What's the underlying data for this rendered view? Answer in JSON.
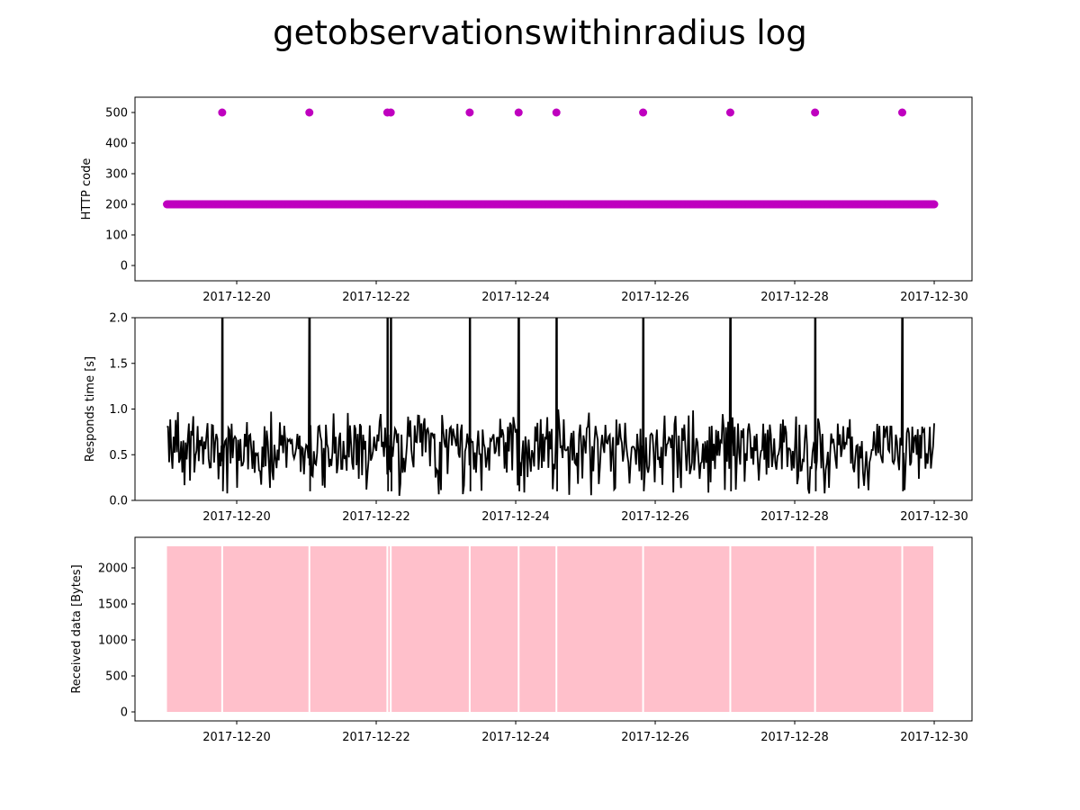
{
  "figure": {
    "title": "getobservationswithinradius log"
  },
  "chart_data": [
    {
      "type": "scatter",
      "name": "http-code-panel",
      "ylabel": "HTTP code",
      "xlim": [
        "2017-12-18T13:00",
        "2017-12-30T13:00"
      ],
      "ylim": [
        -50,
        550
      ],
      "yticks": [
        0,
        100,
        200,
        300,
        400,
        500
      ],
      "xticks": [
        "2017-12-20",
        "2017-12-22",
        "2017-12-24",
        "2017-12-26",
        "2017-12-28",
        "2017-12-30"
      ],
      "color": "#bf00bf",
      "baseline": {
        "value": 200,
        "start": "2017-12-19T00:00",
        "end": "2017-12-30T00:00",
        "step_hours": 0.25
      },
      "errors": {
        "value": 500,
        "times": [
          "2017-12-19T19:00",
          "2017-12-21T01:00",
          "2017-12-22T03:50",
          "2017-12-22T05:00",
          "2017-12-23T08:10",
          "2017-12-24T01:00",
          "2017-12-24T14:00",
          "2017-12-25T19:50",
          "2017-12-27T01:50",
          "2017-12-28T07:00",
          "2017-12-29T13:00"
        ]
      }
    },
    {
      "type": "line",
      "name": "response-time-panel",
      "ylabel": "Responds time [s]",
      "xlim": [
        "2017-12-18T13:00",
        "2017-12-30T13:00"
      ],
      "ylim": [
        0,
        2.0
      ],
      "yticks": [
        0.0,
        0.5,
        1.0,
        1.5,
        2.0
      ],
      "xticks": [
        "2017-12-20",
        "2017-12-22",
        "2017-12-24",
        "2017-12-26",
        "2017-12-28",
        "2017-12-30"
      ],
      "color": "#000000",
      "start": "2017-12-19T00:00",
      "end": "2017-12-30T00:00",
      "typical_range": [
        0.1,
        1.0
      ],
      "spike_times": [
        "2017-12-19T19:00",
        "2017-12-21T01:00",
        "2017-12-22T03:50",
        "2017-12-22T05:00",
        "2017-12-23T08:10",
        "2017-12-24T01:00",
        "2017-12-24T14:00",
        "2017-12-25T19:50",
        "2017-12-27T01:50",
        "2017-12-28T07:00",
        "2017-12-29T13:00"
      ]
    },
    {
      "type": "area",
      "name": "received-data-panel",
      "ylabel": "Received data [Bytes]",
      "xlim": [
        "2017-12-18T13:00",
        "2017-12-30T13:00"
      ],
      "ylim": [
        -125,
        2425
      ],
      "yticks": [
        0,
        500,
        1000,
        1500,
        2000
      ],
      "xticks": [
        "2017-12-20",
        "2017-12-22",
        "2017-12-24",
        "2017-12-26",
        "2017-12-28",
        "2017-12-30"
      ],
      "color": "#ffc0cb",
      "value": 2300,
      "start": "2017-12-19T00:00",
      "end": "2017-12-30T00:00",
      "gap_times": [
        "2017-12-19T19:00",
        "2017-12-21T01:00",
        "2017-12-22T03:50",
        "2017-12-22T05:00",
        "2017-12-23T08:10",
        "2017-12-24T01:00",
        "2017-12-24T14:00",
        "2017-12-25T19:50",
        "2017-12-27T01:50",
        "2017-12-28T07:00",
        "2017-12-29T13:00"
      ]
    }
  ]
}
